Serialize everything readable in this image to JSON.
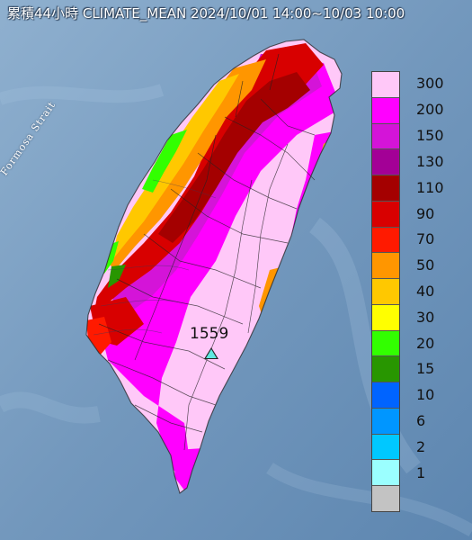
{
  "title": "累積44小時 CLIMATE_MEAN 2024/10/01 14:00~10/03 10:00",
  "sea_label": "Formosa Strait",
  "max_value": "1559",
  "legend": {
    "items": [
      {
        "label": "300",
        "color": "#ffc8f8"
      },
      {
        "label": "200",
        "color": "#ff00ff"
      },
      {
        "label": "150",
        "color": "#d414d8"
      },
      {
        "label": "130",
        "color": "#a30096"
      },
      {
        "label": "110",
        "color": "#a40000"
      },
      {
        "label": "90",
        "color": "#d80000"
      },
      {
        "label": "70",
        "color": "#ff1a00"
      },
      {
        "label": "50",
        "color": "#ff9600"
      },
      {
        "label": "40",
        "color": "#ffc800"
      },
      {
        "label": "30",
        "color": "#ffff00"
      },
      {
        "label": "20",
        "color": "#32ff00"
      },
      {
        "label": "15",
        "color": "#289600"
      },
      {
        "label": "10",
        "color": "#0064ff"
      },
      {
        "label": "6",
        "color": "#0096ff"
      },
      {
        "label": "2",
        "color": "#00c8ff"
      },
      {
        "label": "1",
        "color": "#9bffff"
      },
      {
        "label": "",
        "color": "#c3c3c3"
      }
    ]
  }
}
